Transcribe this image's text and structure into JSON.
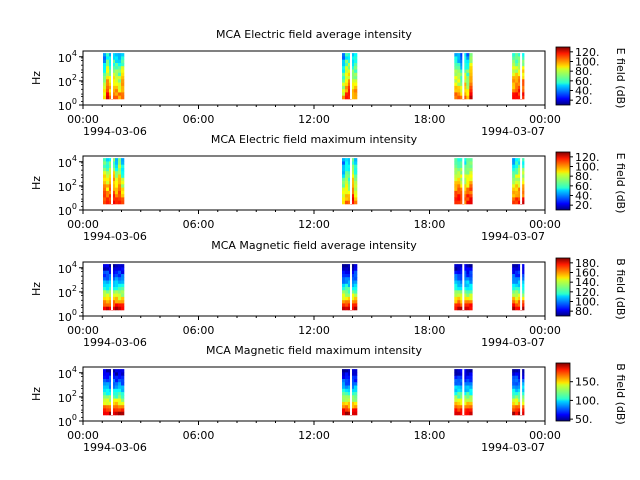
{
  "figure": {
    "common_x_ticks": [
      "00:00",
      "06:00",
      "12:00",
      "18:00",
      "00:00"
    ],
    "start_date_label": "1994-03-06",
    "end_date_label": "1994-03-07"
  },
  "chart_data": [
    {
      "type": "heatmap",
      "title": "MCA  Electric field average intensity",
      "ylabel": "Hz",
      "y_scale": "log",
      "ylim": [
        1,
        30000
      ],
      "y_ticks": [
        "10^0",
        "10^2",
        "10^4"
      ],
      "xlim": [
        "1994-03-06 00:00",
        "1994-03-07 00:00"
      ],
      "colorbar_label": "E field (dB)",
      "colorbar_ticks": [
        20,
        40,
        60,
        80,
        100,
        120
      ],
      "colorbar_ticklabels": [
        "20.",
        "40.",
        "60.",
        "80.",
        "100.",
        "120."
      ],
      "clim": [
        10,
        130
      ],
      "data_intervals": [
        [
          "00:00",
          "01:30"
        ],
        [
          "12:25",
          "13:35"
        ],
        [
          "18:15",
          "19:30"
        ],
        [
          "21:15",
          "22:15"
        ]
      ],
      "colormap": "jet"
    },
    {
      "type": "heatmap",
      "title": "MCA  Electric field maximum intensity",
      "ylabel": "Hz",
      "y_scale": "log",
      "ylim": [
        1,
        30000
      ],
      "y_ticks": [
        "10^0",
        "10^2",
        "10^4"
      ],
      "xlim": [
        "1994-03-06 00:00",
        "1994-03-07 00:00"
      ],
      "colorbar_label": "E field (dB)",
      "colorbar_ticks": [
        20,
        40,
        60,
        80,
        100,
        120
      ],
      "colorbar_ticklabels": [
        "20.",
        "40.",
        "60.",
        "80.",
        "100.",
        "120."
      ],
      "clim": [
        10,
        130
      ],
      "data_intervals": [
        [
          "00:00",
          "01:30"
        ],
        [
          "12:25",
          "13:35"
        ],
        [
          "18:15",
          "19:30"
        ],
        [
          "21:15",
          "22:15"
        ]
      ],
      "colormap": "jet"
    },
    {
      "type": "heatmap",
      "title": "MCA  Magnetic field average intensity",
      "ylabel": "Hz",
      "y_scale": "log",
      "ylim": [
        1,
        30000
      ],
      "y_ticks": [
        "10^0",
        "10^2",
        "10^4"
      ],
      "xlim": [
        "1994-03-06 00:00",
        "1994-03-07 00:00"
      ],
      "colorbar_label": "B field (dB)",
      "colorbar_ticks": [
        80,
        100,
        120,
        140,
        160,
        180
      ],
      "colorbar_ticklabels": [
        "80.",
        "100.",
        "120.",
        "140.",
        "160.",
        "180."
      ],
      "clim": [
        70,
        190
      ],
      "data_intervals": [
        [
          "00:00",
          "01:30"
        ],
        [
          "12:25",
          "13:35"
        ],
        [
          "18:15",
          "19:30"
        ],
        [
          "21:15",
          "22:15"
        ]
      ],
      "colormap": "jet"
    },
    {
      "type": "heatmap",
      "title": "MCA  Magnetic field maximum intensity",
      "ylabel": "Hz",
      "y_scale": "log",
      "ylim": [
        1,
        30000
      ],
      "y_ticks": [
        "10^0",
        "10^2",
        "10^4"
      ],
      "xlim": [
        "1994-03-06 00:00",
        "1994-03-07 00:00"
      ],
      "colorbar_label": "B field (dB)",
      "colorbar_ticks": [
        50,
        100,
        150
      ],
      "colorbar_ticklabels": [
        "50.",
        "100.",
        "150."
      ],
      "clim": [
        45,
        200
      ],
      "data_intervals": [
        [
          "00:00",
          "01:30"
        ],
        [
          "12:25",
          "13:35"
        ],
        [
          "18:15",
          "19:30"
        ],
        [
          "21:15",
          "22:15"
        ]
      ],
      "colormap": "jet"
    }
  ]
}
